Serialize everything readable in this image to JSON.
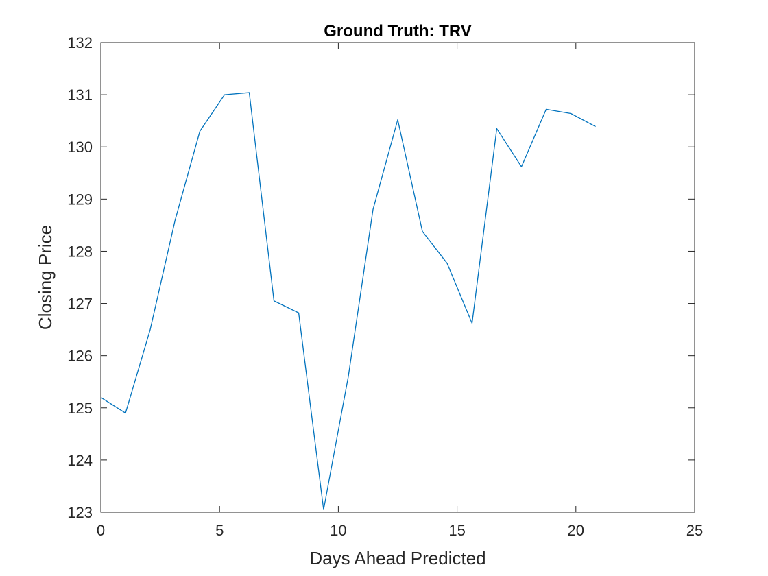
{
  "chart_data": {
    "type": "line",
    "title": "Ground Truth: TRV",
    "xlabel": "Days Ahead Predicted",
    "ylabel": "Closing Price",
    "xlim": [
      0,
      25
    ],
    "ylim": [
      123,
      132
    ],
    "xticks": [
      0,
      5,
      10,
      15,
      20,
      25
    ],
    "yticks": [
      123,
      124,
      125,
      126,
      127,
      128,
      129,
      130,
      131,
      132
    ],
    "grid": false,
    "legend": "none",
    "series": [
      {
        "color": "#0072BD",
        "x": [
          0,
          1.04,
          2.08,
          3.13,
          4.17,
          5.21,
          6.25,
          7.29,
          8.33,
          9.38,
          10.42,
          11.46,
          12.5,
          13.54,
          14.58,
          15.63,
          16.67,
          17.71,
          18.75,
          19.79,
          20.83
        ],
        "values": [
          125.2,
          124.9,
          126.5,
          128.6,
          130.3,
          131.0,
          131.04,
          127.05,
          126.82,
          123.05,
          125.6,
          128.8,
          130.52,
          128.38,
          127.77,
          126.62,
          130.35,
          129.62,
          130.72,
          130.64,
          130.39
        ]
      }
    ]
  }
}
